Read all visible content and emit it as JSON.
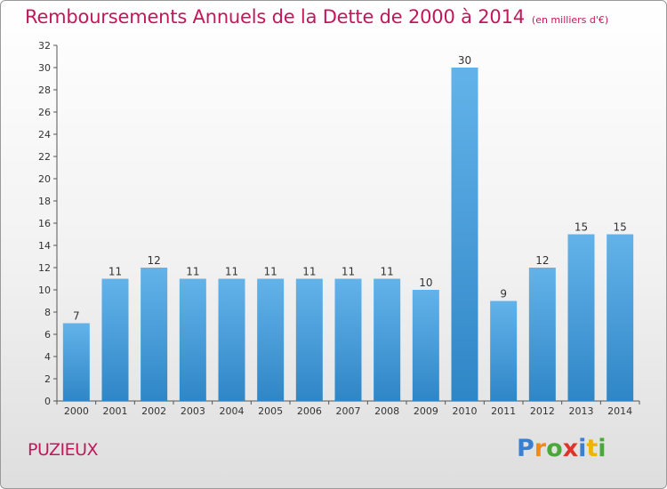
{
  "header": {
    "title": "Remboursements Annuels de la Dette de 2000 à 2014",
    "subtitle": "(en milliers d'€)"
  },
  "footer": {
    "town": "PUZIEUX",
    "logo": {
      "letters": [
        "P",
        "r",
        "o",
        "x",
        "i",
        "t",
        "i"
      ],
      "colors": [
        "#3a7fd0",
        "#f08c16",
        "#4aa83a",
        "#e0342a",
        "#3a7fd0",
        "#f0b400",
        "#4aa83a"
      ]
    }
  },
  "colors": {
    "bar_light": "#63b3ea",
    "bar_dark": "#2f86c6",
    "text": "#333333",
    "title": "#c2185b"
  },
  "chart_data": {
    "type": "bar",
    "title": "Remboursements Annuels de la Dette de 2000 à 2014",
    "subtitle": "(en milliers d'€)",
    "categories": [
      "2000",
      "2001",
      "2002",
      "2003",
      "2004",
      "2005",
      "2006",
      "2007",
      "2008",
      "2009",
      "2010",
      "2011",
      "2012",
      "2013",
      "2014"
    ],
    "values": [
      7,
      11,
      12,
      11,
      11,
      11,
      11,
      11,
      11,
      10,
      30,
      9,
      12,
      15,
      15
    ],
    "ylim": [
      0,
      32
    ],
    "yticks": [
      0,
      2,
      4,
      6,
      8,
      10,
      12,
      14,
      16,
      18,
      20,
      22,
      24,
      26,
      28,
      30,
      32
    ],
    "grid": false,
    "xlabel": "",
    "ylabel": ""
  }
}
